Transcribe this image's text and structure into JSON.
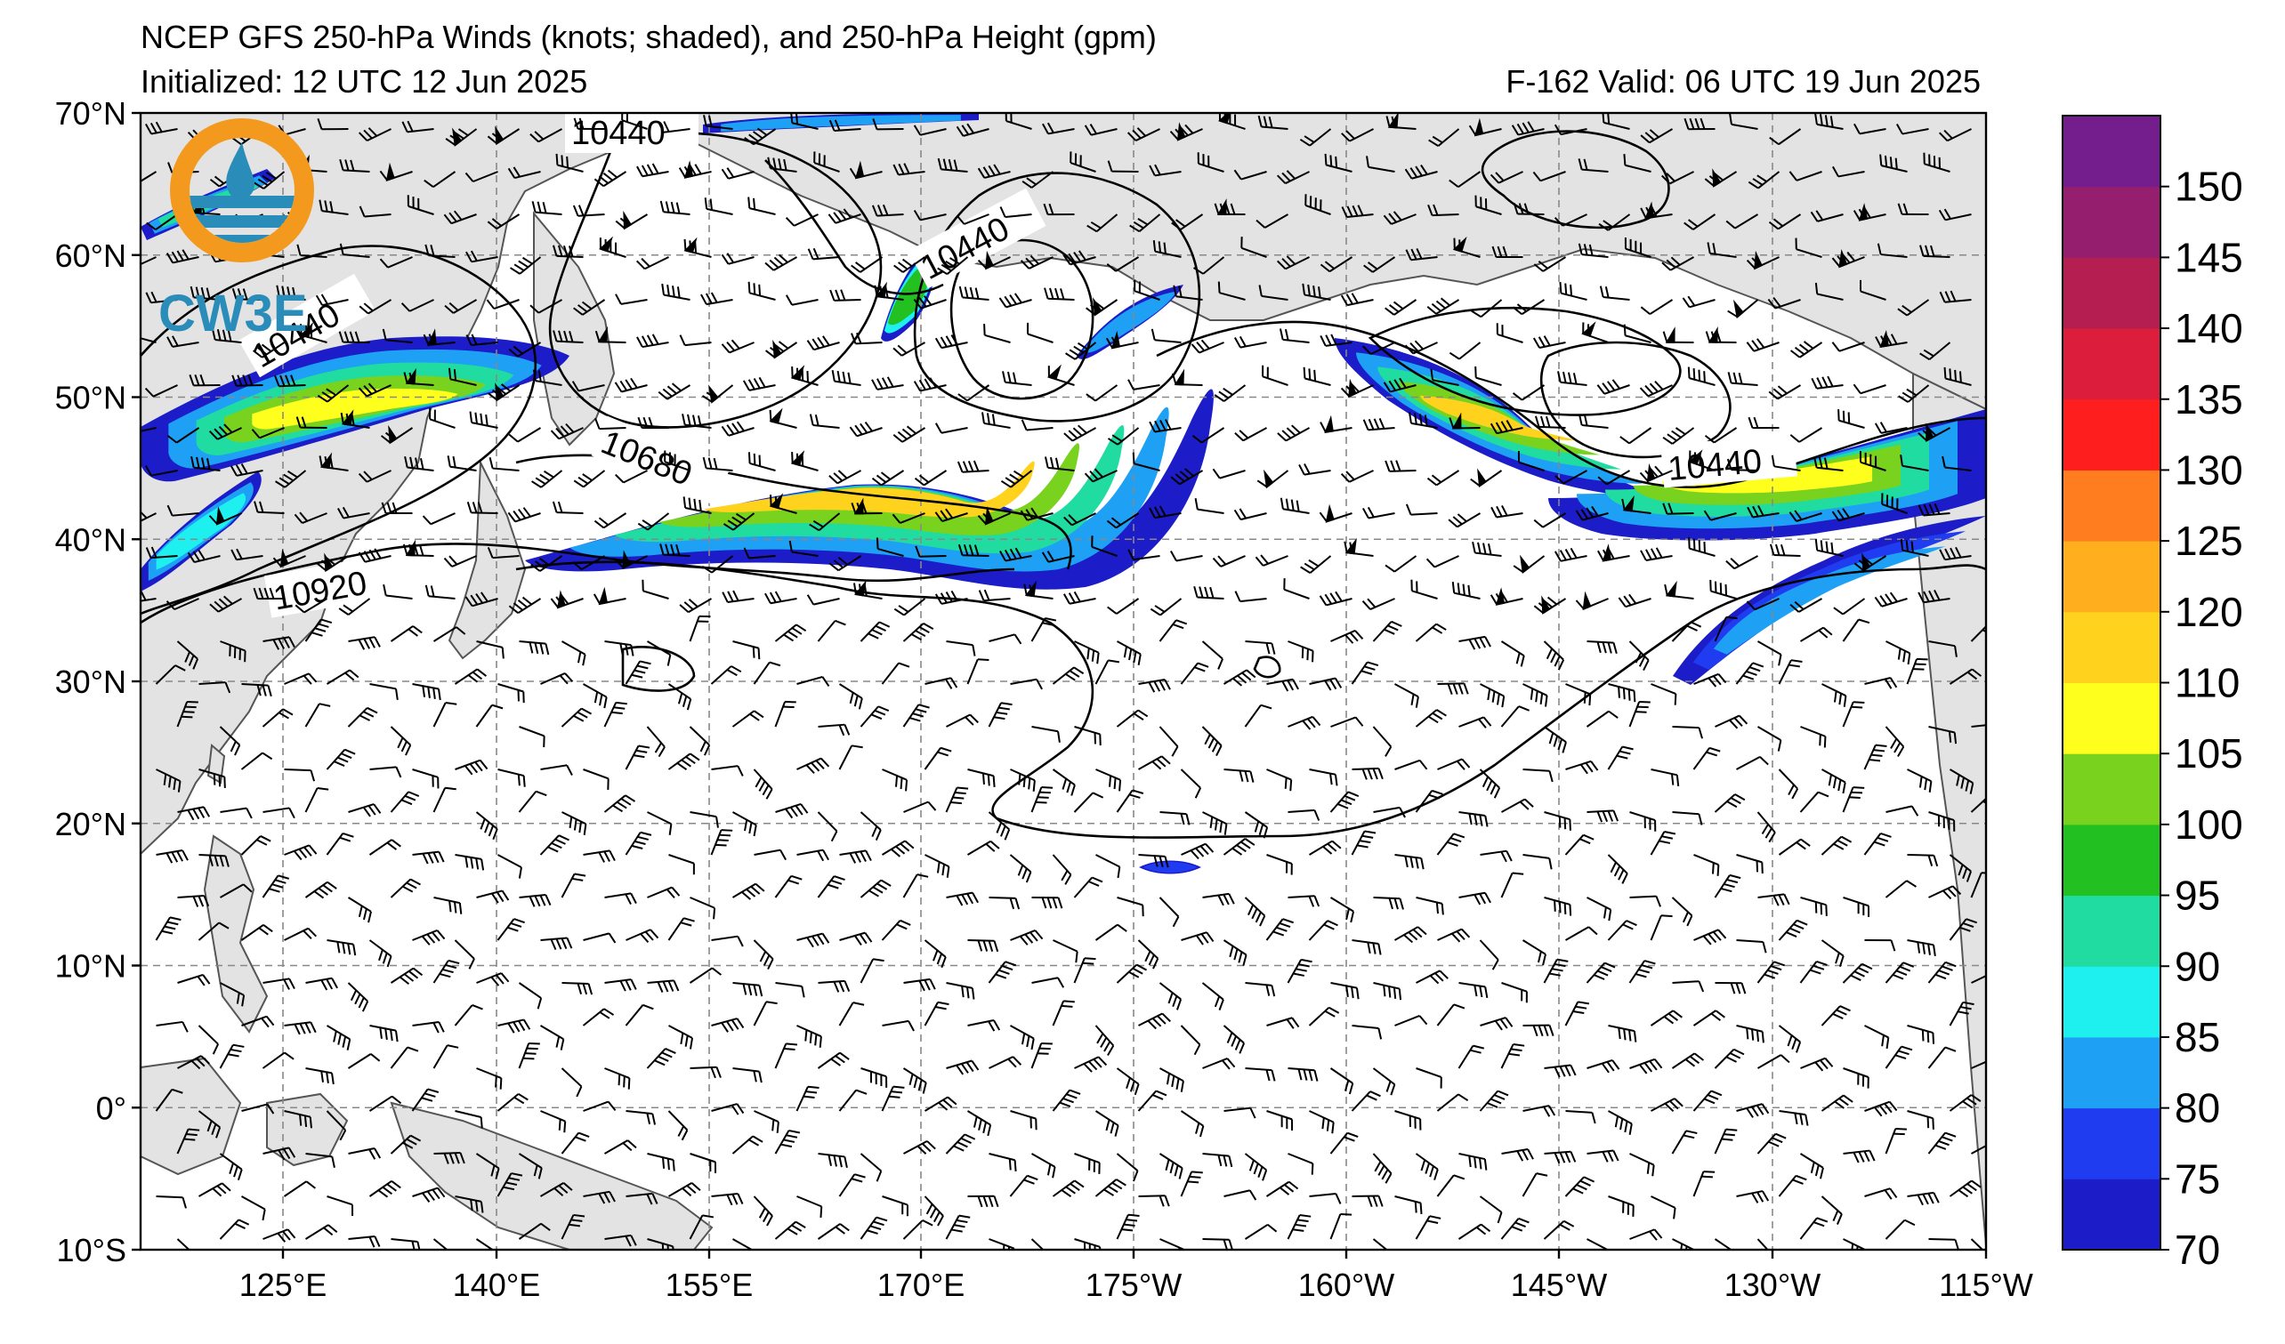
{
  "header": {
    "title": "NCEP GFS 250-hPa Winds (knots; shaded), and 250-hPa Height (gpm)",
    "initialized": "Initialized: 12 UTC 12 Jun 2025",
    "valid": "F-162  Valid: 06 UTC 19 Jun 2025"
  },
  "logo": {
    "text": "CW3E",
    "ring_color": "#f39a1e",
    "water_color": "#2a8cb8"
  },
  "map": {
    "lat_labels": [
      "70°N",
      "60°N",
      "50°N",
      "40°N",
      "30°N",
      "20°N",
      "10°N",
      "0°",
      "10°S"
    ],
    "lon_labels": [
      "125°E",
      "140°E",
      "155°E",
      "170°E",
      "175°W",
      "160°W",
      "145°W",
      "130°W",
      "115°W"
    ],
    "land_color": "#e3e3e3",
    "contour_labels": [
      "10440",
      "10440",
      "10440",
      "10680",
      "10920",
      "10440"
    ]
  },
  "colorbar": {
    "ticks": [
      "70",
      "75",
      "80",
      "85",
      "90",
      "95",
      "100",
      "105",
      "110",
      "120",
      "125",
      "130",
      "135",
      "140",
      "145",
      "150"
    ],
    "colors": [
      "#1c1cc8",
      "#1f3cf0",
      "#1ea0f5",
      "#1ef0f0",
      "#21dca0",
      "#22c020",
      "#78d21e",
      "#ffff1e",
      "#ffd21e",
      "#ffaf1e",
      "#ff7d1e",
      "#ff1e1e",
      "#dc1e3c",
      "#b41e50",
      "#961e6e",
      "#731e8c"
    ]
  }
}
